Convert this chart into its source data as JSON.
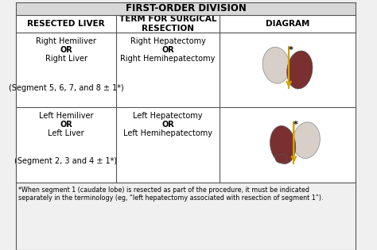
{
  "title": "FIRST-ORDER DIVISION",
  "col_headers": [
    "RESECTED LIVER",
    "TERM FOR SURGICAL\nRESECTION",
    "DIAGRAM"
  ],
  "row1": {
    "col1_lines": [
      "Right Hemiliver",
      "OR",
      "Right Liver",
      "",
      "(Segment 5, 6, 7, and 8 ± 1*)"
    ],
    "col1_bold": [
      false,
      true,
      false,
      false,
      false
    ],
    "col2_lines": [
      "Right Hepatectomy",
      "OR",
      "Right Hemihepatectomy",
      "",
      ""
    ],
    "col2_bold": [
      false,
      true,
      false,
      false,
      false
    ]
  },
  "row2": {
    "col1_lines": [
      "Left Hemiliver",
      "OR",
      "Left Liver",
      "",
      "(Segment 2, 3 and 4 ± 1*)"
    ],
    "col1_bold": [
      false,
      true,
      false,
      false,
      false
    ],
    "col2_lines": [
      "Left Hepatectomy",
      "OR",
      "Left Hemihepatectomy",
      "",
      ""
    ],
    "col2_bold": [
      false,
      true,
      false,
      false,
      false
    ]
  },
  "footnote": "*When segment 1 (caudate lobe) is resected as part of the procedure, it must be indicated\nseparately in the terminology (eg, “left hepatectomy associated with resection of segment 1”).",
  "bg_color": "#f0f0f0",
  "header_bg": "#d8d8d8",
  "white_bg": "#ffffff",
  "border_color": "#555555",
  "title_fontsize": 8.5,
  "header_fontsize": 7.5,
  "cell_fontsize": 7.0,
  "footnote_fontsize": 5.8
}
